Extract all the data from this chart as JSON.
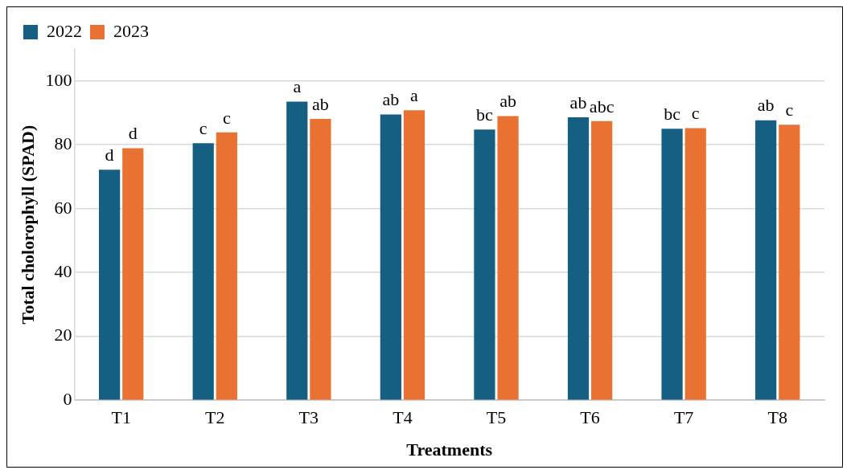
{
  "chart_data": {
    "type": "bar",
    "xlabel": "Treatments",
    "ylabel": "Total cholorophyll (SPAD)",
    "categories": [
      "T1",
      "T2",
      "T3",
      "T4",
      "T5",
      "T6",
      "T7",
      "T8"
    ],
    "series": [
      {
        "name": "2022",
        "color": "#156082",
        "values": [
          72.2,
          80.5,
          93.5,
          89.5,
          84.8,
          88.6,
          85.0,
          87.7
        ],
        "value_labels": [
          "d",
          "c",
          "a",
          "ab",
          "bc",
          "ab",
          "bc",
          "ab"
        ]
      },
      {
        "name": "2023",
        "color": "#e97132",
        "values": [
          78.9,
          83.9,
          88.1,
          90.8,
          89.0,
          87.4,
          85.2,
          86.3
        ],
        "value_labels": [
          "d",
          "c",
          "ab",
          "a",
          "ab",
          "abc",
          "c",
          "c"
        ]
      }
    ],
    "ylim": [
      0,
      110
    ],
    "yticks": [
      0,
      20,
      40,
      60,
      80,
      100
    ],
    "grid": "y",
    "legend": "top left"
  }
}
